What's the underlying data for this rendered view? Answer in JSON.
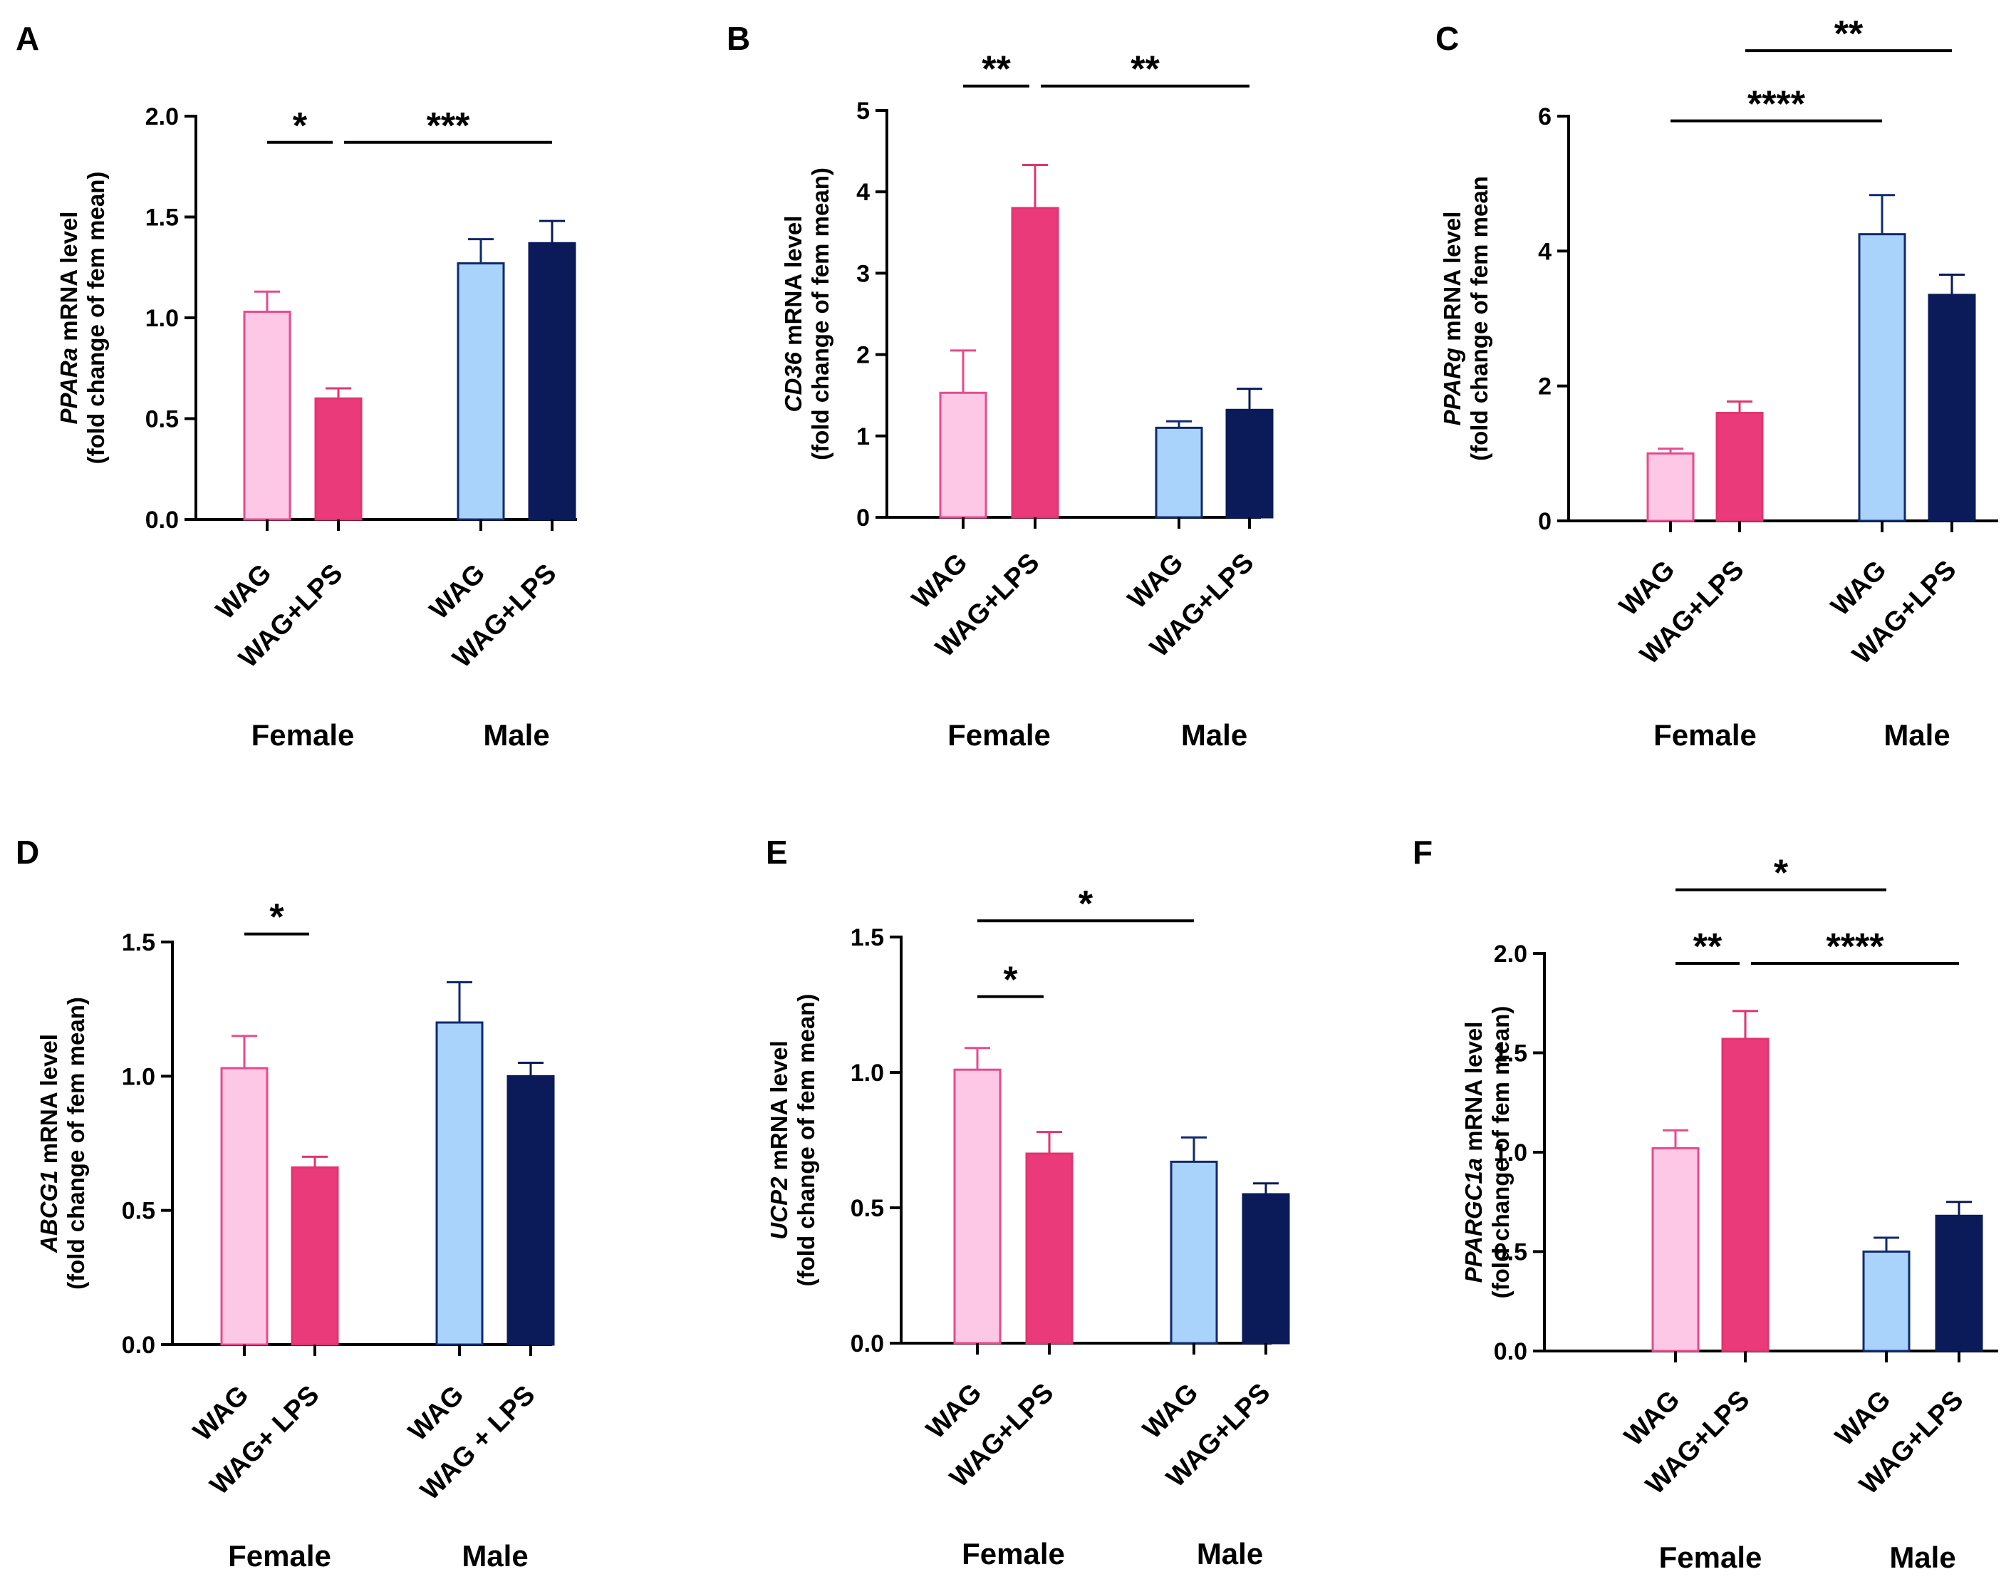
{
  "colors": {
    "fem_wag_fill": "#fcc8e6",
    "fem_wag_edge": "#e84a8c",
    "fem_lps_fill": "#ea3a7a",
    "fem_lps_edge": "#e03570",
    "male_wag_fill": "#a9d3fb",
    "male_wag_edge": "#102a6e",
    "male_lps_fill": "#0b1a58",
    "male_lps_edge": "#0b1a58"
  },
  "chart_data": [
    {
      "letter": "A",
      "type": "bar",
      "gene": "PPARa",
      "ylabel_suffix": " mRNA level",
      "ylabel_line2": "(fold change of fem mean)",
      "ylim": [
        0,
        2.0
      ],
      "yticks": [
        "0.0",
        "0.5",
        "1.0",
        "1.5",
        "2.0"
      ],
      "categories": [
        "WAG",
        "WAG+LPS",
        "WAG",
        "WAG+LPS"
      ],
      "groups": [
        "Female",
        "Male"
      ],
      "values": [
        1.03,
        0.6,
        1.27,
        1.37
      ],
      "errors": [
        0.1,
        0.05,
        0.12,
        0.11
      ],
      "significance": [
        {
          "from": 0,
          "to": 1,
          "y": 1.87,
          "label": "*"
        },
        {
          "from": 1,
          "to": 3,
          "y": 1.87,
          "label": "***"
        }
      ]
    },
    {
      "letter": "B",
      "type": "bar",
      "gene": "CD36",
      "ylabel_suffix": " mRNA level",
      "ylabel_line2": "(fold change of fem mean)",
      "ylim": [
        0,
        5
      ],
      "yticks": [
        "0",
        "1",
        "2",
        "3",
        "4",
        "5"
      ],
      "categories": [
        "WAG",
        "WAG+LPS",
        "WAG",
        "WAG+LPS"
      ],
      "groups": [
        "Female",
        "Male"
      ],
      "values": [
        1.53,
        3.8,
        1.1,
        1.32
      ],
      "errors": [
        0.52,
        0.53,
        0.08,
        0.26
      ],
      "significance": [
        {
          "from": 0,
          "to": 1,
          "y": 5.3,
          "label": "**"
        },
        {
          "from": 1,
          "to": 3,
          "y": 5.3,
          "label": "**"
        }
      ]
    },
    {
      "letter": "C",
      "type": "bar",
      "gene": "PPARg",
      "ylabel_suffix": " mRNA level",
      "ylabel_line2": "(fold change of fem mean",
      "ylim": [
        0,
        6
      ],
      "yticks": [
        "0",
        "2",
        "4",
        "6"
      ],
      "categories": [
        "WAG",
        "WAG+LPS",
        "WAG",
        "WAG+LPS"
      ],
      "groups": [
        "Female",
        "Male"
      ],
      "values": [
        1.0,
        1.6,
        4.25,
        3.35
      ],
      "errors": [
        0.07,
        0.17,
        0.58,
        0.3
      ],
      "significance": [
        {
          "from": 0,
          "to": 2,
          "y": 5.93,
          "label": "****"
        },
        {
          "from": 1,
          "to": 3,
          "y": 6.97,
          "label": "**"
        }
      ]
    },
    {
      "letter": "D",
      "type": "bar",
      "gene": "ABCG1",
      "ylabel_suffix": " mRNA level",
      "ylabel_line2": "(fold change of fem mean)",
      "ylim": [
        0,
        1.5
      ],
      "yticks": [
        "0.0",
        "0.5",
        "1.0",
        "1.5"
      ],
      "categories": [
        "WAG",
        "WAG+ LPS",
        "WAG",
        "WAG + LPS"
      ],
      "groups": [
        "Female",
        "Male"
      ],
      "values": [
        1.03,
        0.66,
        1.2,
        1.0
      ],
      "errors": [
        0.12,
        0.04,
        0.15,
        0.05
      ],
      "significance": [
        {
          "from": 0,
          "to": 1,
          "y": 1.53,
          "label": "*"
        }
      ]
    },
    {
      "letter": "E",
      "type": "bar",
      "gene": "UCP2",
      "ylabel_suffix": " mRNA level",
      "ylabel_line2": "(fold change of fem mean)",
      "ylim": [
        0,
        1.5
      ],
      "yticks": [
        "0.0",
        "0.5",
        "1.0",
        "1.5"
      ],
      "categories": [
        "WAG",
        "WAG+LPS",
        "WAG",
        "WAG+LPS"
      ],
      "groups": [
        "Female",
        "Male"
      ],
      "values": [
        1.01,
        0.7,
        0.67,
        0.55
      ],
      "errors": [
        0.08,
        0.08,
        0.09,
        0.04
      ],
      "significance": [
        {
          "from": 0,
          "to": 1,
          "y": 1.28,
          "label": "*"
        },
        {
          "from": 0,
          "to": 2,
          "y": 1.56,
          "label": "*"
        }
      ]
    },
    {
      "letter": "F",
      "type": "bar",
      "gene": "PPARGC1a",
      "ylabel_suffix": " mRNA level",
      "ylabel_line2": "(fold change of fem mean)",
      "ylim": [
        0,
        2.0
      ],
      "yticks": [
        "0.0",
        "0.5",
        "1.0",
        "1.5",
        "2.0"
      ],
      "categories": [
        "WAG",
        "WAG+LPS",
        "WAG",
        "WAG+LPS"
      ],
      "groups": [
        "Female",
        "Male"
      ],
      "values": [
        1.02,
        1.57,
        0.5,
        0.68
      ],
      "errors": [
        0.09,
        0.14,
        0.07,
        0.07
      ],
      "significance": [
        {
          "from": 0,
          "to": 1,
          "y": 1.95,
          "label": "**"
        },
        {
          "from": 1,
          "to": 3,
          "y": 1.95,
          "label": "****"
        },
        {
          "from": 0,
          "to": 2,
          "y": 2.32,
          "label": "*"
        }
      ]
    }
  ]
}
